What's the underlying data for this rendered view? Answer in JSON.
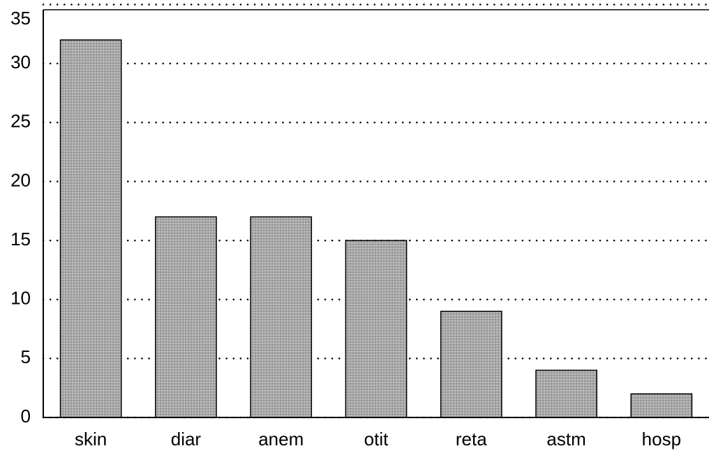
{
  "chart_data": {
    "type": "bar",
    "categories": [
      "skin",
      "diar",
      "anem",
      "otit",
      "reta",
      "astm",
      "hosp"
    ],
    "values": [
      32,
      17,
      17,
      15,
      9,
      4,
      2
    ],
    "color": "#a9a9a9",
    "ylim": [
      0,
      35
    ],
    "yticks": [
      0,
      5,
      10,
      15,
      20,
      25,
      30,
      35
    ],
    "grid": true
  }
}
